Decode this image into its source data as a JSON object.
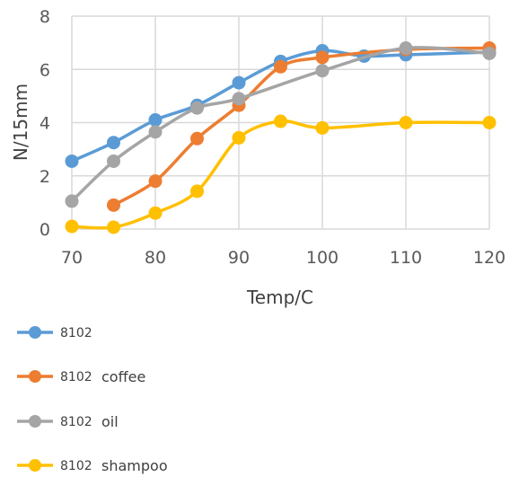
{
  "chart_data": {
    "type": "line",
    "title": "",
    "xlabel": "Temp/C",
    "ylabel": "N/15mm",
    "xlim": [
      70,
      120
    ],
    "ylim": [
      0,
      8
    ],
    "x_ticks": [
      "70",
      "80",
      "90",
      "100",
      "110",
      "120"
    ],
    "y_ticks": [
      "0",
      "2",
      "4",
      "6",
      "8"
    ],
    "grid": "vertical and horizontal",
    "legend_position": "bottom",
    "series": [
      {
        "name": "8102",
        "name_suffix": "",
        "color": "#5B9BD5",
        "points": [
          [
            70,
            2.55
          ],
          [
            75,
            3.25
          ],
          [
            80,
            4.1
          ],
          [
            85,
            4.65
          ],
          [
            90,
            5.5
          ],
          [
            95,
            6.3
          ],
          [
            100,
            6.7
          ],
          [
            105,
            6.5
          ],
          [
            110,
            6.55
          ],
          [
            120,
            6.65
          ]
        ]
      },
      {
        "name": "8102",
        "name_suffix": "coffee",
        "color": "#ED7D31",
        "points": [
          [
            75,
            0.9
          ],
          [
            80,
            1.8
          ],
          [
            85,
            3.4
          ],
          [
            90,
            4.65
          ],
          [
            95,
            6.1
          ],
          [
            100,
            6.45
          ],
          [
            110,
            6.75
          ],
          [
            120,
            6.8
          ]
        ]
      },
      {
        "name": "8102",
        "name_suffix": "oil",
        "color": "#A5A5A5",
        "points": [
          [
            70,
            1.05
          ],
          [
            75,
            2.55
          ],
          [
            80,
            3.65
          ],
          [
            85,
            4.55
          ],
          [
            90,
            4.9
          ],
          [
            100,
            5.95
          ],
          [
            110,
            6.8
          ],
          [
            120,
            6.6
          ]
        ]
      },
      {
        "name": "8102",
        "name_suffix": "shampoo",
        "color": "#FFC000",
        "points": [
          [
            70,
            0.1
          ],
          [
            75,
            0.07
          ],
          [
            80,
            0.6
          ],
          [
            85,
            1.42
          ],
          [
            90,
            3.43
          ],
          [
            95,
            4.05
          ],
          [
            100,
            3.8
          ],
          [
            110,
            4.0
          ],
          [
            120,
            4.0
          ]
        ]
      }
    ]
  }
}
